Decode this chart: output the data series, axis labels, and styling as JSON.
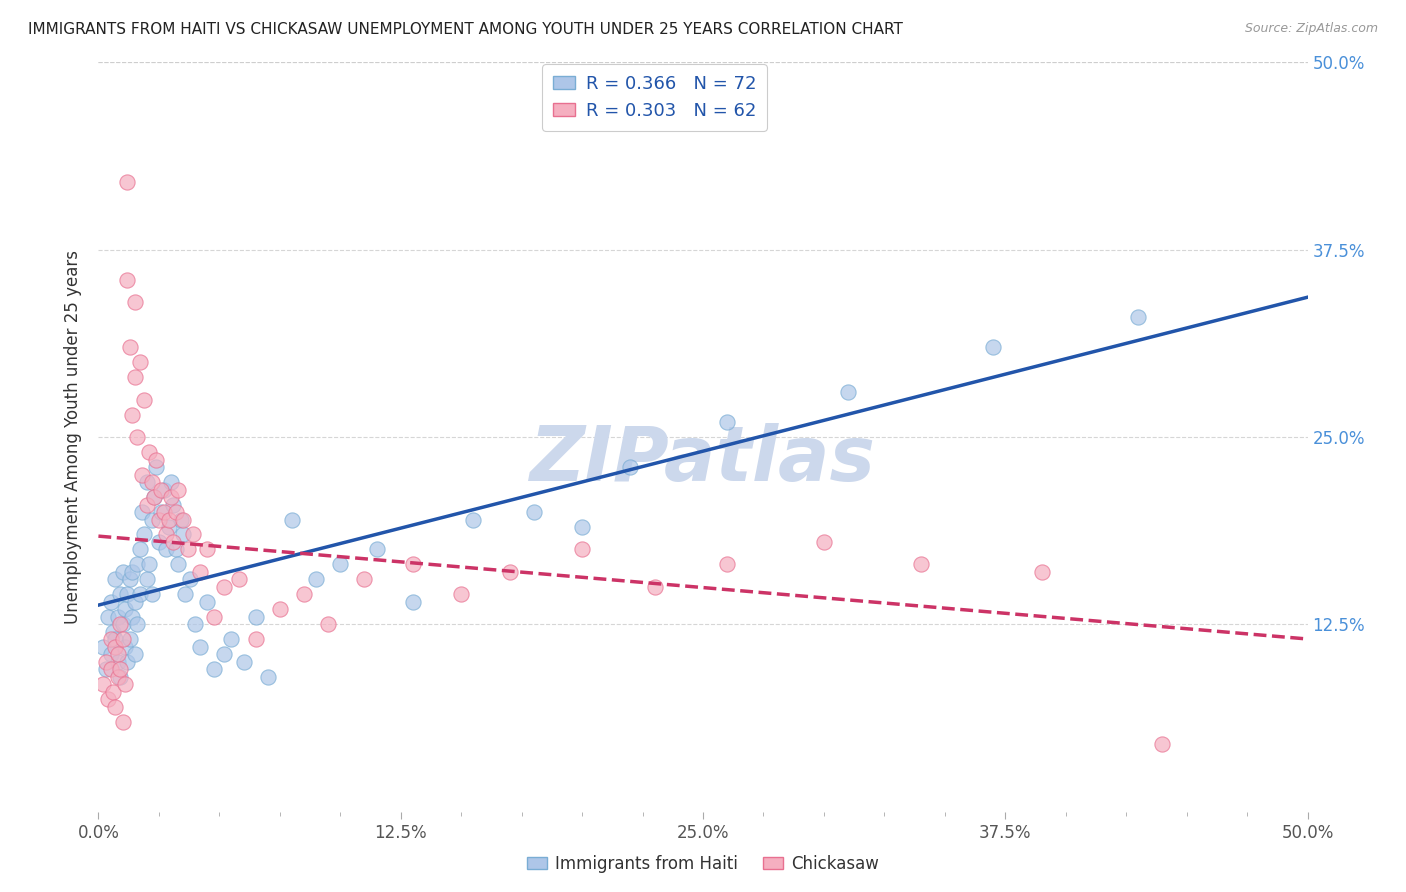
{
  "title": "IMMIGRANTS FROM HAITI VS CHICKASAW UNEMPLOYMENT AMONG YOUTH UNDER 25 YEARS CORRELATION CHART",
  "source": "Source: ZipAtlas.com",
  "ylabel": "Unemployment Among Youth under 25 years",
  "xlim": [
    0.0,
    0.5
  ],
  "ylim": [
    0.0,
    0.5
  ],
  "xtick_labels": [
    "0.0%",
    "",
    "",
    "",
    "",
    "12.5%",
    "",
    "",
    "",
    "",
    "25.0%",
    "",
    "",
    "",
    "",
    "37.5%",
    "",
    "",
    "",
    "",
    "50.0%"
  ],
  "xtick_vals": [
    0.0,
    0.025,
    0.05,
    0.075,
    0.1,
    0.125,
    0.15,
    0.175,
    0.2,
    0.225,
    0.25,
    0.275,
    0.3,
    0.325,
    0.35,
    0.375,
    0.4,
    0.425,
    0.45,
    0.475,
    0.5
  ],
  "xtick_major_labels": [
    "0.0%",
    "12.5%",
    "25.0%",
    "37.5%",
    "50.0%"
  ],
  "xtick_major_vals": [
    0.0,
    0.125,
    0.25,
    0.375,
    0.5
  ],
  "ytick_vals_right": [
    0.5,
    0.375,
    0.25,
    0.125
  ],
  "ytick_labels_right": [
    "50.0%",
    "37.5%",
    "25.0%",
    "12.5%"
  ],
  "grid_vals": [
    0.125,
    0.25,
    0.375,
    0.5
  ],
  "legend_label_haiti": "Immigrants from Haiti",
  "legend_label_chickasaw": "Chickasaw",
  "haiti_R": "0.366",
  "haiti_N": "72",
  "chickasaw_R": "0.303",
  "chickasaw_N": "62",
  "haiti_color": "#aec6e8",
  "haiti_edge_color": "#7aadd4",
  "haiti_line_color": "#2255aa",
  "chickasaw_color": "#f5afc0",
  "chickasaw_edge_color": "#e87090",
  "chickasaw_line_color": "#cc3366",
  "watermark": "ZIPatlas",
  "watermark_color": "#ccd8ec",
  "background_color": "#ffffff",
  "haiti_scatter_x": [
    0.002,
    0.003,
    0.004,
    0.005,
    0.005,
    0.006,
    0.007,
    0.007,
    0.008,
    0.008,
    0.009,
    0.009,
    0.01,
    0.01,
    0.011,
    0.011,
    0.012,
    0.012,
    0.013,
    0.013,
    0.014,
    0.014,
    0.015,
    0.015,
    0.016,
    0.016,
    0.017,
    0.017,
    0.018,
    0.019,
    0.02,
    0.02,
    0.021,
    0.022,
    0.022,
    0.023,
    0.024,
    0.025,
    0.026,
    0.027,
    0.028,
    0.029,
    0.03,
    0.031,
    0.032,
    0.033,
    0.034,
    0.035,
    0.036,
    0.038,
    0.04,
    0.042,
    0.045,
    0.048,
    0.052,
    0.055,
    0.06,
    0.065,
    0.07,
    0.08,
    0.09,
    0.1,
    0.115,
    0.13,
    0.155,
    0.18,
    0.2,
    0.22,
    0.26,
    0.31,
    0.37,
    0.43
  ],
  "haiti_scatter_y": [
    0.11,
    0.095,
    0.13,
    0.105,
    0.14,
    0.12,
    0.115,
    0.155,
    0.1,
    0.13,
    0.145,
    0.09,
    0.125,
    0.16,
    0.11,
    0.135,
    0.1,
    0.145,
    0.115,
    0.155,
    0.13,
    0.16,
    0.105,
    0.14,
    0.125,
    0.165,
    0.145,
    0.175,
    0.2,
    0.185,
    0.155,
    0.22,
    0.165,
    0.195,
    0.145,
    0.21,
    0.23,
    0.18,
    0.2,
    0.215,
    0.175,
    0.19,
    0.22,
    0.205,
    0.175,
    0.165,
    0.195,
    0.185,
    0.145,
    0.155,
    0.125,
    0.11,
    0.14,
    0.095,
    0.105,
    0.115,
    0.1,
    0.13,
    0.09,
    0.195,
    0.155,
    0.165,
    0.175,
    0.14,
    0.195,
    0.2,
    0.19,
    0.23,
    0.26,
    0.28,
    0.31,
    0.33
  ],
  "chickasaw_scatter_x": [
    0.002,
    0.003,
    0.004,
    0.005,
    0.005,
    0.006,
    0.007,
    0.007,
    0.008,
    0.008,
    0.009,
    0.009,
    0.01,
    0.01,
    0.011,
    0.012,
    0.012,
    0.013,
    0.014,
    0.015,
    0.015,
    0.016,
    0.017,
    0.018,
    0.019,
    0.02,
    0.021,
    0.022,
    0.023,
    0.024,
    0.025,
    0.026,
    0.027,
    0.028,
    0.029,
    0.03,
    0.031,
    0.032,
    0.033,
    0.035,
    0.037,
    0.039,
    0.042,
    0.045,
    0.048,
    0.052,
    0.058,
    0.065,
    0.075,
    0.085,
    0.095,
    0.11,
    0.13,
    0.15,
    0.17,
    0.2,
    0.23,
    0.26,
    0.3,
    0.34,
    0.39,
    0.44
  ],
  "chickasaw_scatter_y": [
    0.085,
    0.1,
    0.075,
    0.095,
    0.115,
    0.08,
    0.11,
    0.07,
    0.09,
    0.105,
    0.125,
    0.095,
    0.115,
    0.06,
    0.085,
    0.355,
    0.42,
    0.31,
    0.265,
    0.34,
    0.29,
    0.25,
    0.3,
    0.225,
    0.275,
    0.205,
    0.24,
    0.22,
    0.21,
    0.235,
    0.195,
    0.215,
    0.2,
    0.185,
    0.195,
    0.21,
    0.18,
    0.2,
    0.215,
    0.195,
    0.175,
    0.185,
    0.16,
    0.175,
    0.13,
    0.15,
    0.155,
    0.115,
    0.135,
    0.145,
    0.125,
    0.155,
    0.165,
    0.145,
    0.16,
    0.175,
    0.15,
    0.165,
    0.18,
    0.165,
    0.16,
    0.045
  ]
}
